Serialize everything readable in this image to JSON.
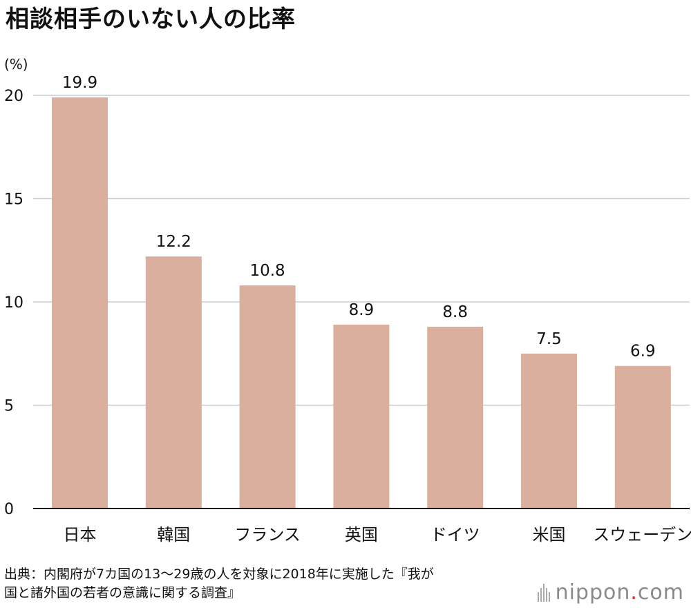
{
  "title": "相談相手のいない人の比率",
  "source": {
    "line1": "出典：内閣府が7カ国の13〜29歳の人を対象に2018年に実施した『我が",
    "line2": "国と諸外国の若者の意識に関する調査』"
  },
  "logo": {
    "name": "nippon",
    "dot": ".",
    "suffix": "com"
  },
  "chart_data": {
    "type": "bar",
    "title": "相談相手のいない人の比率",
    "ylabel": "(%)",
    "xlabel": "",
    "categories": [
      "日本",
      "韓国",
      "フランス",
      "英国",
      "ドイツ",
      "米国",
      "スウェーデン"
    ],
    "values": [
      19.9,
      12.2,
      10.8,
      8.9,
      8.8,
      7.5,
      6.9
    ],
    "value_labels": [
      "19.9",
      "12.2",
      "10.8",
      "8.9",
      "8.8",
      "7.5",
      "6.9"
    ],
    "ylim": [
      0,
      20
    ],
    "yticks": [
      0,
      5,
      10,
      15,
      20
    ],
    "grid": true,
    "bar_color": "#dbaf9e",
    "grid_color": "#cccccc",
    "axis_color": "#111111"
  }
}
